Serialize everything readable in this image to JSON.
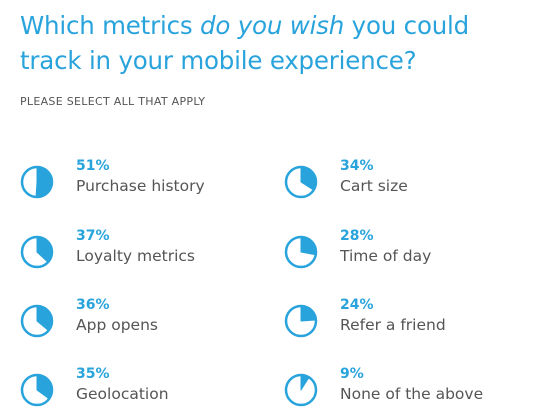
{
  "header": {
    "title_part1": "Which metrics ",
    "title_em": "do you wish",
    "title_part2": " you could track in your mobile experience?",
    "subtitle": "PLEASE SELECT ALL THAT APPLY"
  },
  "colors": {
    "accent": "#29a3dc",
    "text": "#555555"
  },
  "chart_data": {
    "type": "pie",
    "title": "Which metrics do you wish you could track in your mobile experience?",
    "subtitle": "PLEASE SELECT ALL THAT APPLY",
    "items": [
      {
        "label": "Purchase history",
        "value": 51,
        "value_label": "51%"
      },
      {
        "label": "Loyalty metrics",
        "value": 37,
        "value_label": "37%"
      },
      {
        "label": "App opens",
        "value": 36,
        "value_label": "36%"
      },
      {
        "label": "Geolocation",
        "value": 35,
        "value_label": "35%"
      },
      {
        "label": "Cart size",
        "value": 34,
        "value_label": "34%"
      },
      {
        "label": "Time of day",
        "value": 28,
        "value_label": "28%"
      },
      {
        "label": "Refer a friend",
        "value": 24,
        "value_label": "24%"
      },
      {
        "label": "None of the above",
        "value": 9,
        "value_label": "9%"
      }
    ]
  }
}
